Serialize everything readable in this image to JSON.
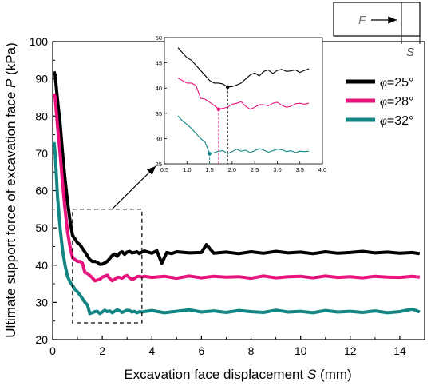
{
  "chart_data": {
    "type": "line",
    "xlabel": "Excavation face displacement",
    "xlabel_symbol": "S",
    "xlabel_unit": "(mm)",
    "ylabel": "Ultimate support force of excavation face",
    "ylabel_symbol": "P",
    "ylabel_unit": "(kPa)",
    "xlim": [
      0,
      15
    ],
    "ylim": [
      20,
      100
    ],
    "x_ticks": [
      "0",
      "2",
      "4",
      "6",
      "8",
      "10",
      "12",
      "14"
    ],
    "y_ticks": [
      "20",
      "30",
      "40",
      "50",
      "60",
      "70",
      "80",
      "90",
      "100"
    ],
    "grid": false,
    "legend_position": "right",
    "series": [
      {
        "name": "φ=25°",
        "legend_symbol": "φ",
        "legend_value": "=25°",
        "color": "#000000",
        "x": [
          0.05,
          0.1,
          0.2,
          0.3,
          0.4,
          0.5,
          0.6,
          0.7,
          0.8,
          0.9,
          1.0,
          1.1,
          1.2,
          1.3,
          1.4,
          1.5,
          1.6,
          1.7,
          1.8,
          1.9,
          2.0,
          2.1,
          2.2,
          2.3,
          2.4,
          2.5,
          2.6,
          2.7,
          2.8,
          2.9,
          3.0,
          3.1,
          3.2,
          3.3,
          3.4,
          3.5,
          3.6,
          3.7,
          4.0,
          4.2,
          4.4,
          4.6,
          4.8,
          5.0,
          5.5,
          6.0,
          6.2,
          6.5,
          7.0,
          7.5,
          8.0,
          8.5,
          9.0,
          9.5,
          10.0,
          10.5,
          11.0,
          11.5,
          12.0,
          12.5,
          13.0,
          13.5,
          14.0,
          14.5,
          14.8
        ],
        "values": [
          92,
          91,
          84,
          78,
          70,
          63,
          57,
          52,
          48,
          47,
          46,
          45.5,
          44.5,
          43.5,
          42.5,
          41.5,
          41,
          41,
          40.8,
          40.2,
          40.3,
          40.6,
          41,
          41.8,
          42.6,
          43,
          42.4,
          43.3,
          43.6,
          42.9,
          43.5,
          43.7,
          43.3,
          43.4,
          43.6,
          43.1,
          43.5,
          43.8,
          43.2,
          43.9,
          40.5,
          43.4,
          43.1,
          43.6,
          43.3,
          43.4,
          45.5,
          43.2,
          43.5,
          43.1,
          43.6,
          43.2,
          43.7,
          43.3,
          43.5,
          43.1,
          43.6,
          43.2,
          43.4,
          43.7,
          43.3,
          43.5,
          43.2,
          43.4,
          43.1
        ]
      },
      {
        "name": "φ=28°",
        "legend_symbol": "φ",
        "legend_value": "=28°",
        "color": "#e8127c",
        "x": [
          0.05,
          0.1,
          0.2,
          0.3,
          0.4,
          0.5,
          0.6,
          0.7,
          0.8,
          0.9,
          1.0,
          1.1,
          1.2,
          1.3,
          1.4,
          1.5,
          1.6,
          1.7,
          1.8,
          1.9,
          2.0,
          2.1,
          2.2,
          2.3,
          2.4,
          2.5,
          2.6,
          2.7,
          2.8,
          2.9,
          3.0,
          3.1,
          3.2,
          3.3,
          3.4,
          3.5,
          3.6,
          3.7,
          4.0,
          4.5,
          5.0,
          5.5,
          6.0,
          6.5,
          7.0,
          7.5,
          8.0,
          8.5,
          9.0,
          9.5,
          10.0,
          10.5,
          11.0,
          11.5,
          12.0,
          12.5,
          13.0,
          13.5,
          14.0,
          14.5,
          14.8
        ],
        "values": [
          86,
          85,
          77,
          70,
          62,
          55,
          49,
          45,
          42,
          41.5,
          41,
          41,
          40.5,
          38,
          37.8,
          37.2,
          36.6,
          35.8,
          36,
          36.2,
          36.8,
          37,
          37.3,
          36.4,
          35.8,
          36.2,
          36.7,
          36.7,
          36.5,
          37,
          37.2,
          36.6,
          36.2,
          36.4,
          36.9,
          37,
          36.8,
          37,
          36.7,
          37,
          36.5,
          37.1,
          36.6,
          37,
          36.8,
          36.9,
          36.5,
          37.1,
          36.6,
          36.9,
          37,
          36.6,
          37.1,
          36.7,
          36.9,
          36.6,
          37,
          36.8,
          36.7,
          37,
          36.8
        ]
      },
      {
        "name": "φ=32°",
        "legend_symbol": "φ",
        "legend_value": "=32°",
        "color": "#138585",
        "x": [
          0.05,
          0.1,
          0.2,
          0.3,
          0.4,
          0.5,
          0.6,
          0.7,
          0.8,
          0.9,
          1.0,
          1.1,
          1.2,
          1.3,
          1.4,
          1.5,
          1.6,
          1.7,
          1.8,
          1.9,
          2.0,
          2.1,
          2.2,
          2.3,
          2.4,
          2.5,
          2.6,
          2.7,
          2.8,
          2.9,
          3.0,
          3.1,
          3.2,
          3.3,
          3.4,
          3.5,
          3.6,
          3.7,
          4.0,
          4.5,
          5.0,
          5.5,
          6.0,
          6.5,
          7.0,
          7.5,
          8.0,
          8.5,
          9.0,
          9.5,
          10.0,
          10.5,
          11.0,
          11.5,
          12.0,
          12.5,
          13.0,
          13.5,
          14.0,
          14.5,
          14.8
        ],
        "values": [
          73,
          70,
          58,
          50,
          44,
          40,
          37,
          35.5,
          34.5,
          33.5,
          32.8,
          32,
          31,
          30,
          29.3,
          27,
          27.2,
          27.5,
          27.6,
          27,
          27.4,
          27.9,
          27.5,
          27.7,
          27.2,
          27.6,
          28,
          27.7,
          27.3,
          27.6,
          27.9,
          27.8,
          27.4,
          27.6,
          27.2,
          27.5,
          27.4,
          27.5,
          27.8,
          27.2,
          27.6,
          28,
          27.4,
          27.7,
          27.3,
          27.8,
          27.5,
          27.3,
          27.9,
          27.4,
          27.6,
          27.2,
          27.8,
          27.4,
          27.6,
          27.3,
          27.7,
          27.2,
          27.5,
          28.2,
          27.4
        ]
      }
    ],
    "inset": {
      "xlim": [
        0.5,
        4.0
      ],
      "ylim": [
        25,
        50
      ],
      "x_ticks": [
        "0.5",
        "1.0",
        "1.5",
        "2.0",
        "2.5",
        "3.0",
        "3.5",
        "4.0"
      ],
      "y_ticks": [
        "25",
        "30",
        "35",
        "40",
        "45",
        "50"
      ],
      "markers": [
        {
          "series": 0,
          "x": 1.9,
          "y": 40.2
        },
        {
          "series": 1,
          "x": 1.7,
          "y": 35.8
        },
        {
          "series": 2,
          "x": 1.5,
          "y": 27
        }
      ]
    },
    "zoom_box": {
      "x": [
        0.8,
        3.6
      ],
      "y": [
        24.5,
        55
      ]
    },
    "schematic": {
      "force_label": "F",
      "displacement_label": "S"
    }
  }
}
